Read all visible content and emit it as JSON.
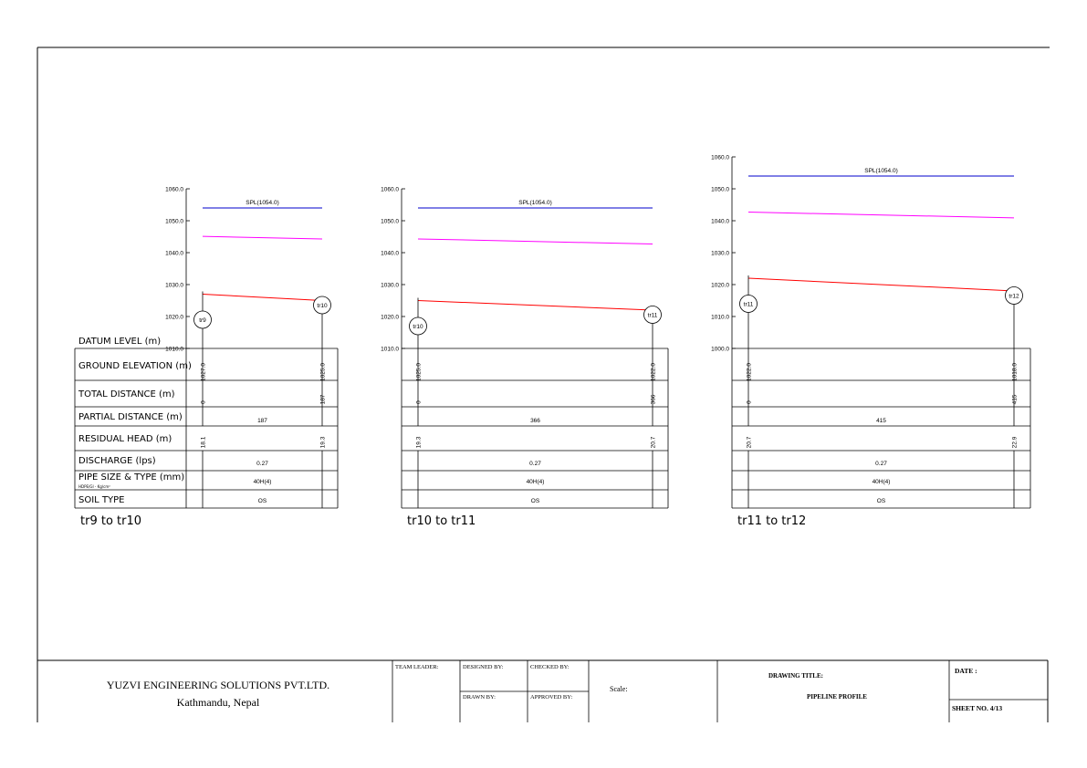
{
  "colors": {
    "hgl": "#ff00ff",
    "ground": "#ff0000",
    "spl": "#0000cc",
    "frame": "#000000"
  },
  "row_labels": [
    "GROUND ELEVATION (m)",
    "TOTAL DISTANCE (m)",
    "PARTIAL DISTANCE (m)",
    "RESIDUAL HEAD (m)",
    "DISCHARGE (lps)",
    "PIPE SIZE & TYPE (mm)",
    "SOIL TYPE"
  ],
  "datum_label": "DATUM LEVEL (m)",
  "pipe_note": "HDPE/GI - Kg/cm²",
  "chart_data": [
    {
      "type": "line",
      "caption": "tr9 to tr10",
      "y_ticks": [
        "1060.0",
        "1050.0",
        "1040.0",
        "1030.0",
        "1020.0",
        "1010.0"
      ],
      "ylim": [
        1010,
        1060
      ],
      "spl_label": "SPL(1054.0)",
      "spl": 1054.0,
      "nodes": [
        {
          "label": "tr9",
          "x": 0,
          "ground": 1027.0,
          "hgl": 1045.1,
          "total_distance": "0",
          "residual_head": "18.1",
          "ground_text": "1027.0"
        },
        {
          "label": "tr10",
          "x": 187,
          "ground": 1025.0,
          "hgl": 1044.3,
          "total_distance": "187",
          "residual_head": "19.3",
          "ground_text": "1025.0"
        }
      ],
      "partial_distance": "187",
      "discharge": "0.27",
      "pipe": "40H(4)",
      "soil": "OS"
    },
    {
      "type": "line",
      "caption": "tr10 to tr11",
      "y_ticks": [
        "1060.0",
        "1050.0",
        "1040.0",
        "1030.0",
        "1020.0",
        "1010.0"
      ],
      "ylim": [
        1010,
        1060
      ],
      "spl_label": "SPL(1054.0)",
      "spl": 1054.0,
      "nodes": [
        {
          "label": "tr10",
          "x": 0,
          "ground": 1025.0,
          "hgl": 1044.3,
          "total_distance": "0",
          "residual_head": "19.3",
          "ground_text": "1025.0"
        },
        {
          "label": "tr11",
          "x": 366,
          "ground": 1022.0,
          "hgl": 1042.7,
          "total_distance": "366",
          "residual_head": "20.7",
          "ground_text": "1022.0"
        }
      ],
      "partial_distance": "366",
      "discharge": "0.27",
      "pipe": "40H(4)",
      "soil": "OS"
    },
    {
      "type": "line",
      "caption": "tr11 to tr12",
      "y_ticks": [
        "1060.0",
        "1050.0",
        "1040.0",
        "1030.0",
        "1020.0",
        "1010.0",
        "1000.0"
      ],
      "ylim": [
        1000,
        1060
      ],
      "spl_label": "SPL(1054.0)",
      "spl": 1054.0,
      "nodes": [
        {
          "label": "tr11",
          "x": 0,
          "ground": 1022.0,
          "hgl": 1042.7,
          "total_distance": "0",
          "residual_head": "20.7",
          "ground_text": "1022.0"
        },
        {
          "label": "tr12",
          "x": 415,
          "ground": 1018.0,
          "hgl": 1040.9,
          "total_distance": "415",
          "residual_head": "22.9",
          "ground_text": "1018.0"
        }
      ],
      "partial_distance": "415",
      "discharge": "0.27",
      "pipe": "40H(4)",
      "soil": "OS"
    }
  ],
  "title_block": {
    "company": "YUZVI ENGINEERING SOLUTIONS PVT.LTD.",
    "location": "Kathmandu, Nepal",
    "team_leader": "TEAM LEADER:",
    "designed_by": "DESIGNED BY:",
    "checked_by": "CHECKED BY:",
    "drawn_by": "DRAWN BY:",
    "approved_by": "APPROVED BY:",
    "scale": "Scale:",
    "drawing_title_label": "DRAWING TITLE:",
    "drawing_title": "PIPELINE PROFILE",
    "date": "DATE :",
    "sheet_no": "SHEET NO. 4/13"
  }
}
